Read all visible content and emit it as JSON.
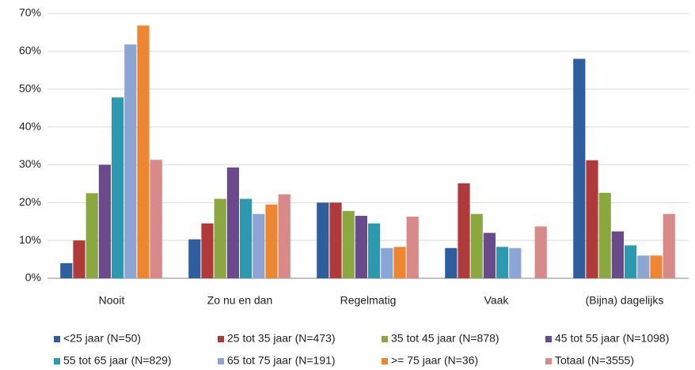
{
  "chart_data": {
    "type": "bar",
    "categories": [
      "Nooit",
      "Zo nu en dan",
      "Regelmatig",
      "Vaak",
      "(Bijna) dagelijks"
    ],
    "series": [
      {
        "name": "<25 jaar (N=50)",
        "color": "#2f5e9f",
        "values": [
          4,
          10.3,
          20,
          8,
          58
        ]
      },
      {
        "name": "25 tot 35 jaar (N=473)",
        "color": "#b0393a",
        "values": [
          10,
          14.5,
          20,
          25.1,
          31.2
        ]
      },
      {
        "name": "35 tot 45 jaar (N=878)",
        "color": "#89a93e",
        "values": [
          22.5,
          21,
          17.8,
          17,
          22.6
        ]
      },
      {
        "name": "45 tot 55 jaar (N=1098)",
        "color": "#6a4a8c",
        "values": [
          30,
          29.3,
          16.5,
          12,
          12.4
        ]
      },
      {
        "name": "55 tot 65 jaar (N=829)",
        "color": "#2b9ab0",
        "values": [
          47.8,
          21,
          14.5,
          8.3,
          8.7
        ]
      },
      {
        "name": "65 tot 75 jaar (N=191)",
        "color": "#8ba6d5",
        "values": [
          61.8,
          17,
          8,
          8,
          6
        ]
      },
      {
        "name": ">= 75 jaar (N=36)",
        "color": "#ee8630",
        "values": [
          66.8,
          19.5,
          8.3,
          0,
          6
        ]
      },
      {
        "name": "Totaal (N=3555)",
        "color": "#d88a89",
        "values": [
          31.3,
          22.2,
          16.3,
          13.7,
          17
        ]
      }
    ],
    "ylim": [
      0,
      70
    ],
    "yticks": [
      {
        "value": 0,
        "label": "0%"
      },
      {
        "value": 10,
        "label": "10%"
      },
      {
        "value": 20,
        "label": "20%"
      },
      {
        "value": 30,
        "label": "30%"
      },
      {
        "value": 40,
        "label": "40%"
      },
      {
        "value": 50,
        "label": "50%"
      },
      {
        "value": 60,
        "label": "60%"
      },
      {
        "value": 70,
        "label": "70%"
      }
    ],
    "grid": true
  }
}
